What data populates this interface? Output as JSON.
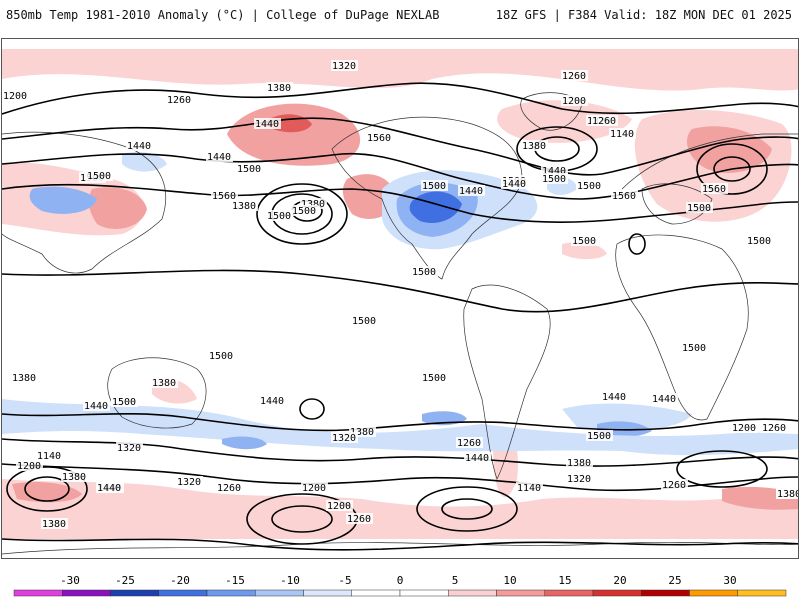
{
  "header": {
    "title": "850mb Temp 1981-2010 Anomaly (°C) | College of DuPage NEXLAB",
    "run_info": "18Z GFS | F384 Valid: 18Z MON DEC 01 2025"
  },
  "colorbar": {
    "ticks": [
      "-30",
      "-25",
      "-20",
      "-15",
      "-10",
      "-5",
      "0",
      "5",
      "10",
      "15",
      "20",
      "25",
      "30"
    ],
    "colors": [
      "#e040e0",
      "#8a10c0",
      "#1a3fb0",
      "#3f6fe0",
      "#6f99ee",
      "#a9c6f5",
      "#dbe8fb",
      "#ffffff",
      "#ffffff",
      "#fbd0d0",
      "#f49c9c",
      "#e96565",
      "#d73030",
      "#b00000",
      "#ff9a00",
      "#ffbf20"
    ]
  },
  "anomaly_colors": {
    "light_warm": "#fbd3d3",
    "warm": "#f2a1a1",
    "strong_warm": "#e25b5b",
    "light_cold": "#cfe0fb",
    "cold": "#8fb3f2",
    "strong_cold": "#3f6fe0"
  },
  "contour_labels": [
    "1320",
    "1380",
    "1440",
    "1260",
    "1200",
    "1140",
    "1260",
    "1320",
    "1380",
    "1440",
    "1500",
    "1560",
    "1440",
    "1500",
    "1560",
    "1500",
    "1380",
    "1380",
    "1500",
    "1500",
    "1500",
    "1560",
    "1500",
    "1440",
    "1380",
    "1320",
    "1500",
    "1440",
    "1560",
    "1200",
    "1260",
    "1140",
    "1500",
    "1500",
    "1440",
    "1500",
    "1500",
    "1500",
    "1500",
    "1500",
    "1500",
    "1380",
    "1440",
    "1500",
    "1440",
    "1440",
    "1500",
    "1380",
    "1320",
    "1260",
    "1200",
    "1140",
    "1260",
    "1320",
    "1380",
    "1440",
    "1200",
    "1320",
    "1380",
    "1260",
    "1200",
    "1140",
    "1320",
    "1260",
    "1380",
    "1380",
    "1320",
    "1260",
    "1440",
    "1500",
    "1200",
    "1260",
    "1380",
    "1440",
    "1500",
    "1440",
    "1380"
  ]
}
